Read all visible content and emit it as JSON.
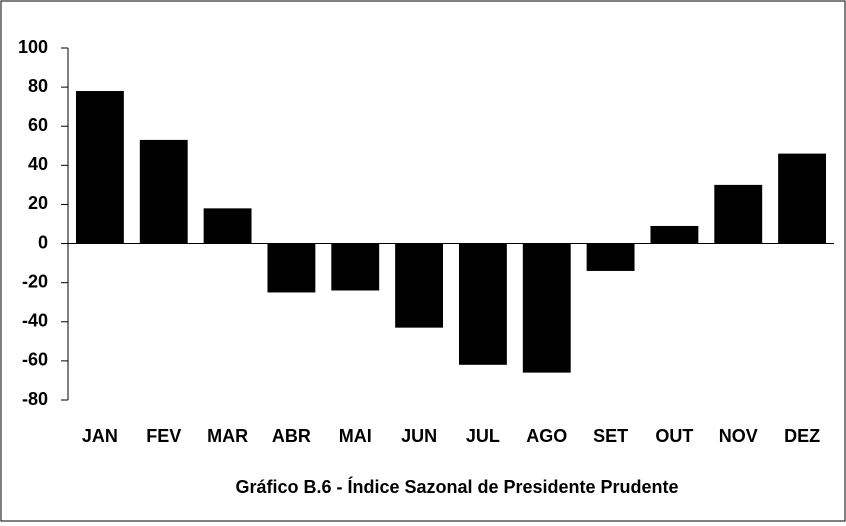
{
  "chart_data": {
    "type": "bar",
    "title": "Gráfico B.6 - Índice Sazonal de Presidente Prudente",
    "categories": [
      "JAN",
      "FEV",
      "MAR",
      "ABR",
      "MAI",
      "JUN",
      "JUL",
      "AGO",
      "SET",
      "OUT",
      "NOV",
      "DEZ"
    ],
    "values": [
      78,
      53,
      18,
      -25,
      -24,
      -43,
      -62,
      -66,
      -14,
      9,
      30,
      46
    ],
    "color": "#000000",
    "ylim": [
      -80,
      100
    ],
    "yticks": [
      -80,
      -60,
      -40,
      -20,
      0,
      20,
      40,
      60,
      80,
      100
    ],
    "grid": false
  }
}
